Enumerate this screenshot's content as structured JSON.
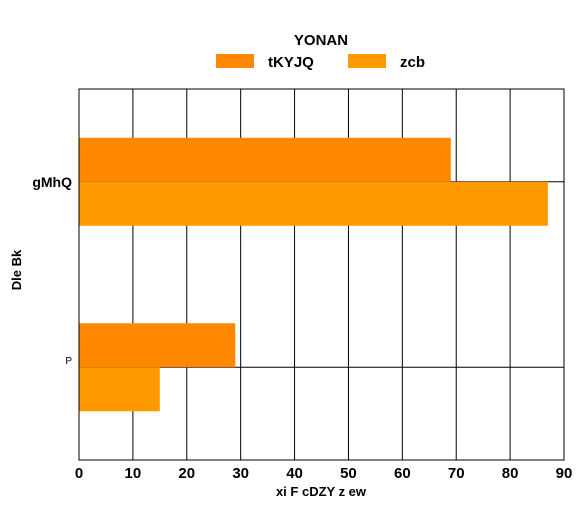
{
  "chart_data": {
    "type": "bar",
    "orientation": "horizontal",
    "title": "YONAN",
    "xlabel": "xi F cDZY z ew",
    "ylabel": "Dle Bk",
    "categories": [
      "gMhQ",
      "P"
    ],
    "series": [
      {
        "name": "tKYJQ",
        "values": [
          69,
          29
        ],
        "color": "#FF8800"
      },
      {
        "name": "zcb",
        "values": [
          87,
          15
        ],
        "color": "#FF9900"
      }
    ],
    "xlim": [
      0,
      90
    ],
    "xticks": [
      "0",
      "10",
      "20",
      "30",
      "40",
      "50",
      "60",
      "70",
      "80",
      "90"
    ],
    "grid": true,
    "legend": "top-center"
  }
}
